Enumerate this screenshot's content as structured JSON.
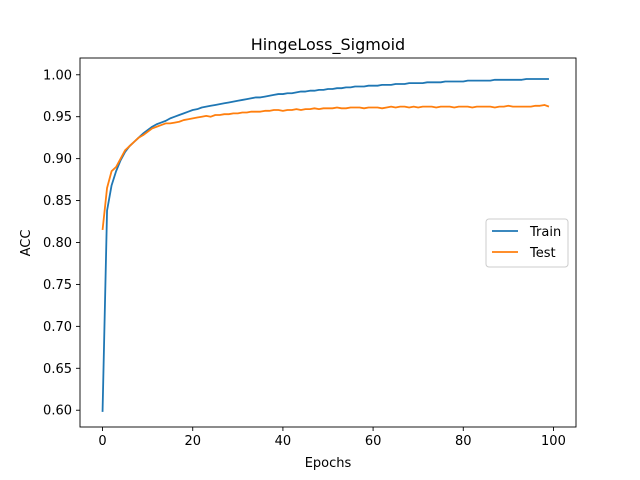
{
  "chart_data": {
    "type": "line",
    "title": "HingeLoss_Sigmoid",
    "xlabel": "Epochs",
    "ylabel": "ACC",
    "xlim": [
      -5,
      105
    ],
    "ylim": [
      0.58,
      1.02
    ],
    "xticks": [
      0,
      20,
      40,
      60,
      80,
      100
    ],
    "yticks": [
      0.6,
      0.65,
      0.7,
      0.75,
      0.8,
      0.85,
      0.9,
      0.95,
      1.0
    ],
    "grid": false,
    "legend_position": "center-right",
    "x": [
      0,
      1,
      2,
      3,
      4,
      5,
      6,
      7,
      8,
      9,
      10,
      11,
      12,
      13,
      14,
      15,
      16,
      17,
      18,
      19,
      20,
      21,
      22,
      23,
      24,
      25,
      26,
      27,
      28,
      29,
      30,
      31,
      32,
      33,
      34,
      35,
      36,
      37,
      38,
      39,
      40,
      41,
      42,
      43,
      44,
      45,
      46,
      47,
      48,
      49,
      50,
      51,
      52,
      53,
      54,
      55,
      56,
      57,
      58,
      59,
      60,
      61,
      62,
      63,
      64,
      65,
      66,
      67,
      68,
      69,
      70,
      71,
      72,
      73,
      74,
      75,
      76,
      77,
      78,
      79,
      80,
      81,
      82,
      83,
      84,
      85,
      86,
      87,
      88,
      89,
      90,
      91,
      92,
      93,
      94,
      95,
      96,
      97,
      98,
      99
    ],
    "series": [
      {
        "name": "Train",
        "color": "#1f77b4",
        "values": [
          0.598,
          0.838,
          0.868,
          0.885,
          0.898,
          0.908,
          0.915,
          0.92,
          0.925,
          0.93,
          0.934,
          0.938,
          0.941,
          0.943,
          0.945,
          0.948,
          0.95,
          0.952,
          0.954,
          0.956,
          0.958,
          0.959,
          0.961,
          0.962,
          0.963,
          0.964,
          0.965,
          0.966,
          0.967,
          0.968,
          0.969,
          0.97,
          0.971,
          0.972,
          0.973,
          0.973,
          0.974,
          0.975,
          0.976,
          0.977,
          0.977,
          0.978,
          0.978,
          0.979,
          0.98,
          0.98,
          0.981,
          0.981,
          0.982,
          0.982,
          0.983,
          0.983,
          0.984,
          0.984,
          0.985,
          0.985,
          0.986,
          0.986,
          0.986,
          0.987,
          0.987,
          0.987,
          0.988,
          0.988,
          0.988,
          0.989,
          0.989,
          0.989,
          0.99,
          0.99,
          0.99,
          0.99,
          0.991,
          0.991,
          0.991,
          0.991,
          0.992,
          0.992,
          0.992,
          0.992,
          0.992,
          0.993,
          0.993,
          0.993,
          0.993,
          0.993,
          0.993,
          0.994,
          0.994,
          0.994,
          0.994,
          0.994,
          0.994,
          0.994,
          0.995,
          0.995,
          0.995,
          0.995,
          0.995,
          0.995
        ]
      },
      {
        "name": "Test",
        "color": "#ff7f0e",
        "values": [
          0.815,
          0.865,
          0.885,
          0.89,
          0.9,
          0.91,
          0.915,
          0.92,
          0.925,
          0.928,
          0.932,
          0.936,
          0.938,
          0.94,
          0.942,
          0.942,
          0.943,
          0.944,
          0.946,
          0.947,
          0.948,
          0.949,
          0.95,
          0.951,
          0.95,
          0.952,
          0.952,
          0.953,
          0.953,
          0.954,
          0.954,
          0.955,
          0.955,
          0.956,
          0.956,
          0.956,
          0.957,
          0.957,
          0.958,
          0.958,
          0.957,
          0.958,
          0.958,
          0.959,
          0.958,
          0.959,
          0.959,
          0.96,
          0.959,
          0.96,
          0.96,
          0.96,
          0.961,
          0.96,
          0.96,
          0.961,
          0.961,
          0.961,
          0.96,
          0.961,
          0.961,
          0.961,
          0.96,
          0.961,
          0.962,
          0.961,
          0.962,
          0.962,
          0.961,
          0.962,
          0.961,
          0.962,
          0.962,
          0.962,
          0.961,
          0.962,
          0.962,
          0.962,
          0.961,
          0.962,
          0.962,
          0.962,
          0.961,
          0.962,
          0.962,
          0.962,
          0.962,
          0.961,
          0.962,
          0.962,
          0.963,
          0.962,
          0.962,
          0.962,
          0.962,
          0.962,
          0.963,
          0.963,
          0.964,
          0.962
        ]
      }
    ]
  }
}
